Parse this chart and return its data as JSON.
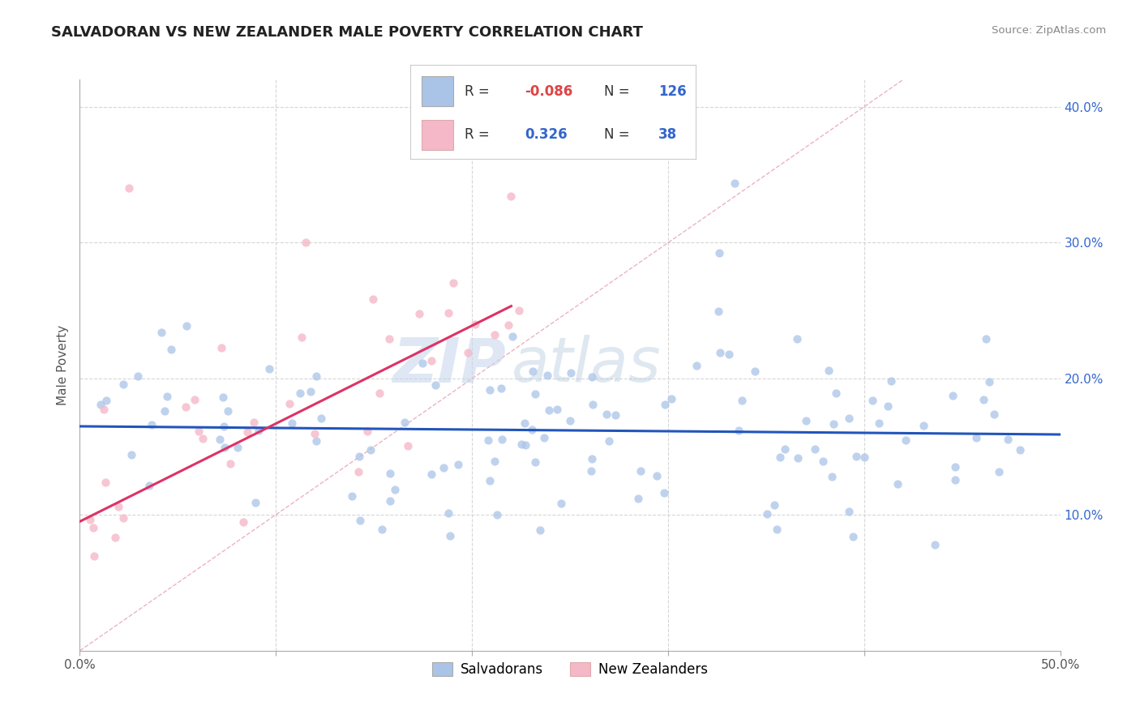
{
  "title": "SALVADORAN VS NEW ZEALANDER MALE POVERTY CORRELATION CHART",
  "source": "Source: ZipAtlas.com",
  "ylabel": "Male Poverty",
  "xlim": [
    0.0,
    0.5
  ],
  "ylim": [
    0.0,
    0.42
  ],
  "xticks": [
    0.0,
    0.1,
    0.2,
    0.3,
    0.4,
    0.5
  ],
  "xticklabels": [
    "0.0%",
    "",
    "",
    "",
    "",
    "50.0%"
  ],
  "yticks": [
    0.0,
    0.1,
    0.2,
    0.3,
    0.4
  ],
  "yticklabels_right": [
    "",
    "10.0%",
    "20.0%",
    "30.0%",
    "40.0%"
  ],
  "blue_color": "#aac4e8",
  "pink_color": "#f5b8c8",
  "blue_line_color": "#2255bb",
  "pink_line_color": "#dd3366",
  "diag_line_color": "#e8a0b0",
  "R_blue": -0.086,
  "N_blue": 126,
  "R_pink": 0.326,
  "N_pink": 38,
  "legend_label_blue": "Salvadorans",
  "legend_label_pink": "New Zealanders",
  "watermark_zip": "ZIP",
  "watermark_atlas": "atlas",
  "title_fontsize": 13,
  "axis_label_fontsize": 11,
  "tick_fontsize": 11,
  "legend_fontsize": 12,
  "blue_intercept": 0.165,
  "blue_slope": -0.012,
  "pink_intercept": 0.095,
  "pink_slope": 0.72
}
